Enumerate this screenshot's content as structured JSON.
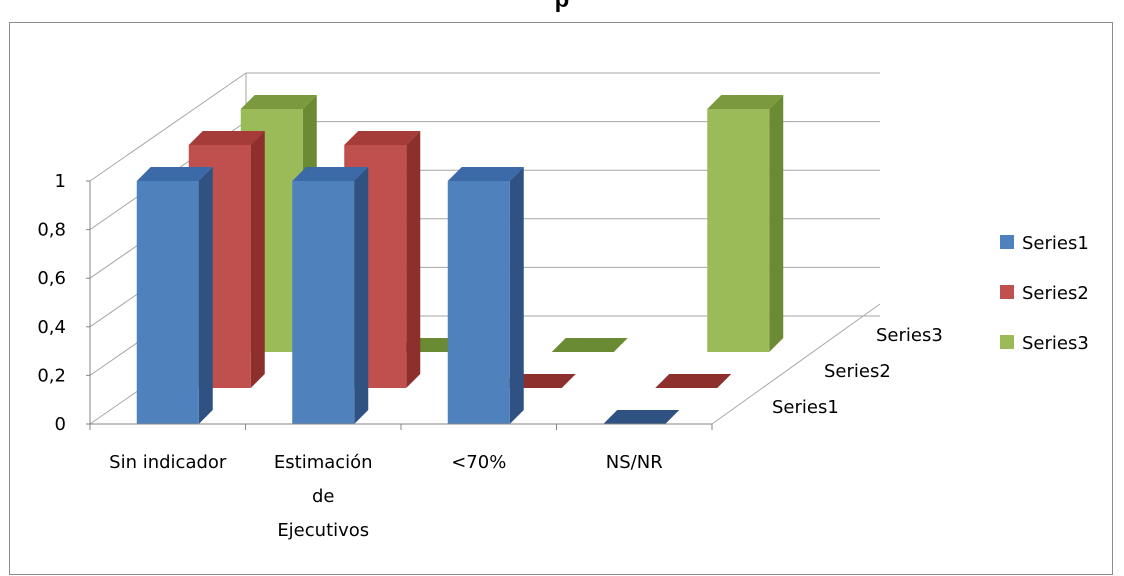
{
  "chart_data": {
    "type": "bar",
    "title": "p",
    "categories": [
      "Sin indicador",
      "Estimación de Ejecutivos",
      "<70%",
      "NS/NR"
    ],
    "category_lines": [
      [
        "Sin indicador"
      ],
      [
        "Estimación",
        "de",
        "Ejecutivos"
      ],
      [
        "<70%"
      ],
      [
        "NS/NR"
      ]
    ],
    "series": [
      {
        "name": "Series1",
        "values": [
          1,
          1,
          1,
          0
        ]
      },
      {
        "name": "Series2",
        "values": [
          1,
          1,
          0,
          0
        ]
      },
      {
        "name": "Series3",
        "values": [
          1,
          0,
          0,
          1
        ]
      }
    ],
    "y_ticks": [
      "0",
      "0,2",
      "0,4",
      "0,6",
      "0,8",
      "1"
    ],
    "ylim": [
      0,
      1
    ],
    "grid": true,
    "legend_position": "right",
    "colors": {
      "Series1": {
        "front": "#4f81bd",
        "side": "#2f5282",
        "top": "#3c6aa8"
      },
      "Series2": {
        "front": "#c0504d",
        "side": "#8c2f2d",
        "top": "#a63c39"
      },
      "Series3": {
        "front": "#9bbb59",
        "side": "#6a8a33",
        "top": "#7a9a3d"
      }
    }
  }
}
